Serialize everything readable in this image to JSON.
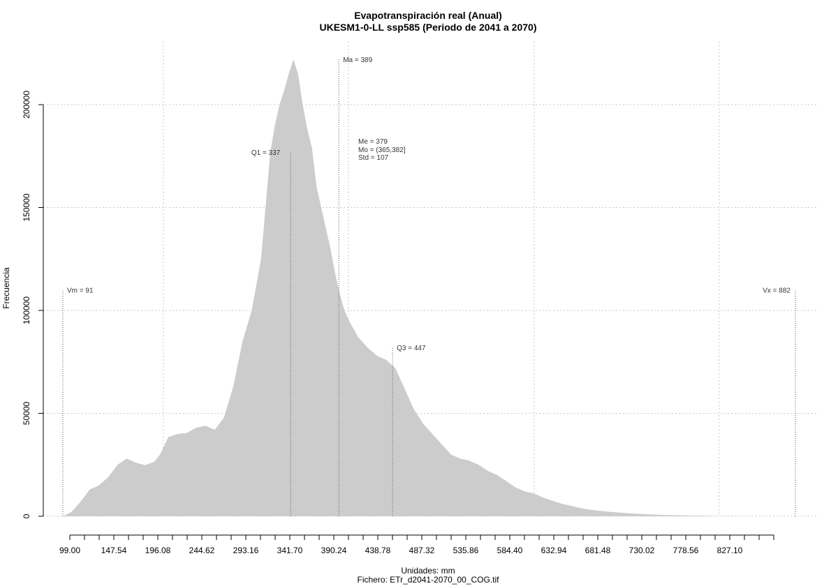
{
  "chart_data": {
    "type": "area",
    "title": "Evapotranspiración real (Anual)",
    "subtitle": "UKESM1-0-LL ssp585 (Periodo de 2041 a 2070)",
    "xlabel": "Unidades: mm",
    "ylabel": "Frecuencia",
    "footer": "Fichero: ETr_d2041-2070_00_COG.tif",
    "xlim": [
      91,
      1000
    ],
    "ylim": [
      0,
      225000
    ],
    "grid": true,
    "fill_color": "#cccccc",
    "x_tick_labels": [
      "99.00",
      "147.54",
      "196.08",
      "244.62",
      "293.16",
      "341.70",
      "390.24",
      "438.78",
      "487.32",
      "535.86",
      "584.40",
      "632.94",
      "681.48",
      "730.02",
      "778.56",
      "827.10"
    ],
    "y_ticks": [
      0,
      50000,
      100000,
      150000,
      200000
    ],
    "y_tick_labels": [
      "0",
      "50000",
      "100000",
      "150000",
      "200000"
    ],
    "x": [
      91,
      100,
      110,
      120,
      130,
      140,
      150,
      160,
      170,
      180,
      190,
      196,
      205,
      215,
      225,
      235,
      245,
      255,
      265,
      275,
      285,
      295,
      305,
      315,
      320,
      325,
      330,
      335,
      340,
      345,
      350,
      355,
      360,
      365,
      370,
      375,
      380,
      385,
      390,
      395,
      400,
      410,
      420,
      430,
      440,
      450,
      460,
      470,
      480,
      490,
      500,
      510,
      520,
      530,
      540,
      550,
      560,
      570,
      580,
      590,
      600,
      610,
      620,
      630,
      640,
      650,
      660,
      680,
      700,
      720,
      740,
      760,
      780,
      800,
      820,
      840,
      860,
      880
    ],
    "values": [
      0,
      2000,
      7000,
      13000,
      15000,
      19000,
      25000,
      28000,
      26000,
      24800,
      26500,
      30000,
      38500,
      40000,
      40500,
      43000,
      44000,
      42000,
      48000,
      63000,
      85000,
      100000,
      125000,
      177000,
      190000,
      200000,
      207000,
      215000,
      222000,
      215000,
      200000,
      188000,
      179000,
      160000,
      150000,
      140000,
      130000,
      118000,
      108000,
      100000,
      95000,
      87000,
      82000,
      78000,
      76000,
      72000,
      62000,
      52000,
      45000,
      40000,
      35000,
      30000,
      28000,
      27000,
      25000,
      22000,
      20000,
      17000,
      14000,
      12000,
      11000,
      9000,
      7500,
      6000,
      5000,
      4000,
      3200,
      2200,
      1500,
      1000,
      600,
      400,
      250,
      150,
      80,
      40,
      20,
      0
    ],
    "markers": [
      {
        "label": "Vm = 91",
        "x": 91,
        "y": 110000
      },
      {
        "label": "Q1 = 337",
        "x": 337,
        "y": 177000
      },
      {
        "label": "Ma = 389",
        "x": 389,
        "y": 222000
      },
      {
        "label": "Q3 = 447",
        "x": 447,
        "y": 82000
      },
      {
        "label": "Vx = 882",
        "x": 882,
        "y": 110000
      }
    ],
    "stats": [
      "Me = 379",
      "Mo = (365,382]",
      "Std = 107"
    ]
  }
}
